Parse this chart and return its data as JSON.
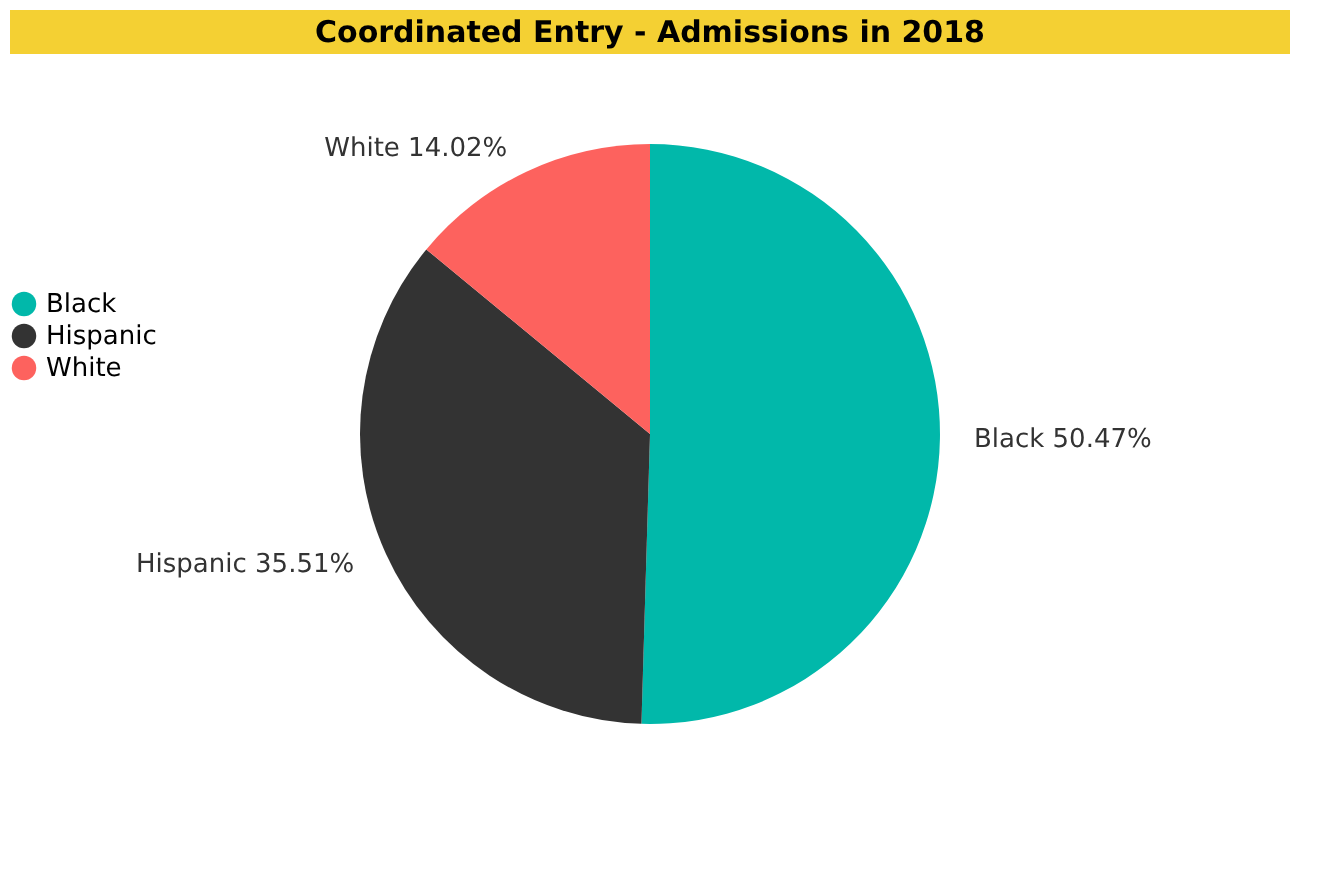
{
  "chart_data": {
    "type": "pie",
    "title": "Coordinated Entry - Admissions in 2018",
    "categories": [
      "Black",
      "Hispanic",
      "White"
    ],
    "values": [
      50.47,
      35.51,
      14.02
    ],
    "colors": [
      "#01b8aa",
      "#333333",
      "#fd625e"
    ],
    "value_labels": [
      "Black 50.47%",
      "Hispanic 35.51%",
      "White 14.02%"
    ],
    "legend": "left"
  }
}
